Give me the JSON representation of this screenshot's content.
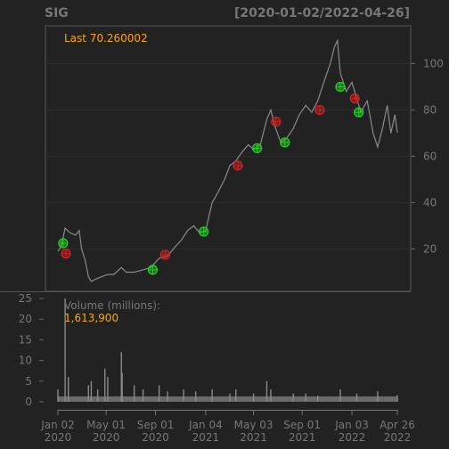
{
  "chart_data": {
    "type": "line",
    "title": "SIG",
    "date_range": "[2020-01-02/2022-04-26]",
    "last_label": "Last 70.260002",
    "price_axis": {
      "ylim": [
        0,
        112
      ],
      "ticks": [
        20,
        40,
        60,
        80,
        100
      ],
      "grid": true,
      "side": "right"
    },
    "volume_axis": {
      "ylim": [
        0,
        26
      ],
      "ticks": [
        0,
        5,
        10,
        15,
        20,
        25
      ],
      "side": "left"
    },
    "volume_label": "Volume (millions):",
    "volume_value": "1,613,900",
    "x_ticks": [
      {
        "date": "2020-01-02",
        "label1": "Jan 02",
        "label2": "2020"
      },
      {
        "date": "2020-05-01",
        "label1": "May 01",
        "label2": "2020"
      },
      {
        "date": "2020-09-01",
        "label1": "Sep 01",
        "label2": "2020"
      },
      {
        "date": "2021-01-04",
        "label1": "Jan 04",
        "label2": "2021"
      },
      {
        "date": "2021-05-03",
        "label1": "May 03",
        "label2": "2021"
      },
      {
        "date": "2021-09-01",
        "label1": "Sep 01",
        "label2": "2021"
      },
      {
        "date": "2022-01-03",
        "label1": "Jan 03",
        "label2": "2022"
      },
      {
        "date": "2022-04-26",
        "label1": "Apr 26",
        "label2": "2022"
      }
    ],
    "series": [
      {
        "values": [
          {
            "x": "2020-01-02",
            "y": 19
          },
          {
            "x": "2020-01-10",
            "y": 21
          },
          {
            "x": "2020-01-20",
            "y": 29
          },
          {
            "x": "2020-02-01",
            "y": 27
          },
          {
            "x": "2020-02-15",
            "y": 26
          },
          {
            "x": "2020-02-24",
            "y": 28
          },
          {
            "x": "2020-03-01",
            "y": 20
          },
          {
            "x": "2020-03-10",
            "y": 15
          },
          {
            "x": "2020-03-18",
            "y": 8
          },
          {
            "x": "2020-03-25",
            "y": 6
          },
          {
            "x": "2020-04-05",
            "y": 7
          },
          {
            "x": "2020-04-20",
            "y": 8
          },
          {
            "x": "2020-05-05",
            "y": 9
          },
          {
            "x": "2020-05-20",
            "y": 9
          },
          {
            "x": "2020-06-08",
            "y": 12
          },
          {
            "x": "2020-06-20",
            "y": 10
          },
          {
            "x": "2020-07-10",
            "y": 10
          },
          {
            "x": "2020-08-01",
            "y": 11
          },
          {
            "x": "2020-08-20",
            "y": 12
          },
          {
            "x": "2020-09-10",
            "y": 16
          },
          {
            "x": "2020-10-01",
            "y": 17
          },
          {
            "x": "2020-10-20",
            "y": 21
          },
          {
            "x": "2020-11-05",
            "y": 24
          },
          {
            "x": "2020-11-20",
            "y": 28
          },
          {
            "x": "2020-12-05",
            "y": 30
          },
          {
            "x": "2020-12-20",
            "y": 27
          },
          {
            "x": "2021-01-04",
            "y": 28
          },
          {
            "x": "2021-01-20",
            "y": 40
          },
          {
            "x": "2021-02-05",
            "y": 45
          },
          {
            "x": "2021-02-20",
            "y": 50
          },
          {
            "x": "2021-03-05",
            "y": 56
          },
          {
            "x": "2021-03-20",
            "y": 58
          },
          {
            "x": "2021-04-05",
            "y": 62
          },
          {
            "x": "2021-04-20",
            "y": 65
          },
          {
            "x": "2021-05-03",
            "y": 63
          },
          {
            "x": "2021-05-20",
            "y": 65
          },
          {
            "x": "2021-06-05",
            "y": 76
          },
          {
            "x": "2021-06-15",
            "y": 80
          },
          {
            "x": "2021-06-25",
            "y": 73
          },
          {
            "x": "2021-07-10",
            "y": 66
          },
          {
            "x": "2021-07-25",
            "y": 68
          },
          {
            "x": "2021-08-10",
            "y": 72
          },
          {
            "x": "2021-08-25",
            "y": 78
          },
          {
            "x": "2021-09-10",
            "y": 82
          },
          {
            "x": "2021-09-25",
            "y": 79
          },
          {
            "x": "2021-10-10",
            "y": 84
          },
          {
            "x": "2021-10-25",
            "y": 92
          },
          {
            "x": "2021-11-10",
            "y": 100
          },
          {
            "x": "2021-11-20",
            "y": 107
          },
          {
            "x": "2021-11-28",
            "y": 110
          },
          {
            "x": "2021-12-05",
            "y": 96
          },
          {
            "x": "2021-12-20",
            "y": 88
          },
          {
            "x": "2022-01-03",
            "y": 92
          },
          {
            "x": "2022-01-15",
            "y": 85
          },
          {
            "x": "2022-01-25",
            "y": 79
          },
          {
            "x": "2022-02-10",
            "y": 84
          },
          {
            "x": "2022-02-25",
            "y": 70
          },
          {
            "x": "2022-03-08",
            "y": 64
          },
          {
            "x": "2022-03-20",
            "y": 72
          },
          {
            "x": "2022-04-01",
            "y": 82
          },
          {
            "x": "2022-04-10",
            "y": 70
          },
          {
            "x": "2022-04-20",
            "y": 78
          },
          {
            "x": "2022-04-26",
            "y": 70.26
          }
        ]
      }
    ],
    "signals": [
      {
        "x": "2020-01-15",
        "y": 22.5,
        "kind": "buy",
        "color": "#22CC22"
      },
      {
        "x": "2020-01-22",
        "y": 18,
        "kind": "sell",
        "color": "#CC2222"
      },
      {
        "x": "2020-08-25",
        "y": 11,
        "kind": "buy",
        "color": "#22CC22"
      },
      {
        "x": "2020-09-25",
        "y": 17.5,
        "kind": "sell",
        "color": "#CC2222"
      },
      {
        "x": "2020-12-30",
        "y": 27.5,
        "kind": "buy",
        "color": "#22CC22"
      },
      {
        "x": "2021-03-25",
        "y": 56,
        "kind": "sell",
        "color": "#CC2222"
      },
      {
        "x": "2021-05-12",
        "y": 63.5,
        "kind": "buy",
        "color": "#22CC22"
      },
      {
        "x": "2021-06-28",
        "y": 75,
        "kind": "sell",
        "color": "#CC2222"
      },
      {
        "x": "2021-07-20",
        "y": 66,
        "kind": "buy",
        "color": "#22CC22"
      },
      {
        "x": "2021-10-15",
        "y": 80,
        "kind": "sell",
        "color": "#CC2222"
      },
      {
        "x": "2021-12-05",
        "y": 90,
        "kind": "buy",
        "color": "#22CC22"
      },
      {
        "x": "2022-01-10",
        "y": 85,
        "kind": "sell",
        "color": "#CC2222"
      },
      {
        "x": "2022-01-20",
        "y": 79,
        "kind": "buy",
        "color": "#22CC22"
      }
    ],
    "volume": [
      {
        "x": "2020-01-02",
        "y": 3
      },
      {
        "x": "2020-01-20",
        "y": 25
      },
      {
        "x": "2020-01-28",
        "y": 6
      },
      {
        "x": "2020-03-18",
        "y": 4
      },
      {
        "x": "2020-03-25",
        "y": 5
      },
      {
        "x": "2020-04-10",
        "y": 3
      },
      {
        "x": "2020-04-28",
        "y": 8
      },
      {
        "x": "2020-05-05",
        "y": 6
      },
      {
        "x": "2020-06-08",
        "y": 12
      },
      {
        "x": "2020-06-10",
        "y": 7
      },
      {
        "x": "2020-07-10",
        "y": 4
      },
      {
        "x": "2020-08-01",
        "y": 3
      },
      {
        "x": "2020-09-10",
        "y": 4
      },
      {
        "x": "2020-10-01",
        "y": 2.5
      },
      {
        "x": "2020-11-10",
        "y": 3
      },
      {
        "x": "2020-12-10",
        "y": 2.5
      },
      {
        "x": "2021-01-20",
        "y": 3
      },
      {
        "x": "2021-03-05",
        "y": 2
      },
      {
        "x": "2021-03-20",
        "y": 3
      },
      {
        "x": "2021-05-03",
        "y": 2
      },
      {
        "x": "2021-06-05",
        "y": 5
      },
      {
        "x": "2021-06-15",
        "y": 3
      },
      {
        "x": "2021-08-10",
        "y": 2
      },
      {
        "x": "2021-09-10",
        "y": 2
      },
      {
        "x": "2021-10-10",
        "y": 1.5
      },
      {
        "x": "2021-12-05",
        "y": 3
      },
      {
        "x": "2022-01-15",
        "y": 2
      },
      {
        "x": "2022-03-08",
        "y": 2.5
      },
      {
        "x": "2022-04-26",
        "y": 1.6
      }
    ]
  }
}
